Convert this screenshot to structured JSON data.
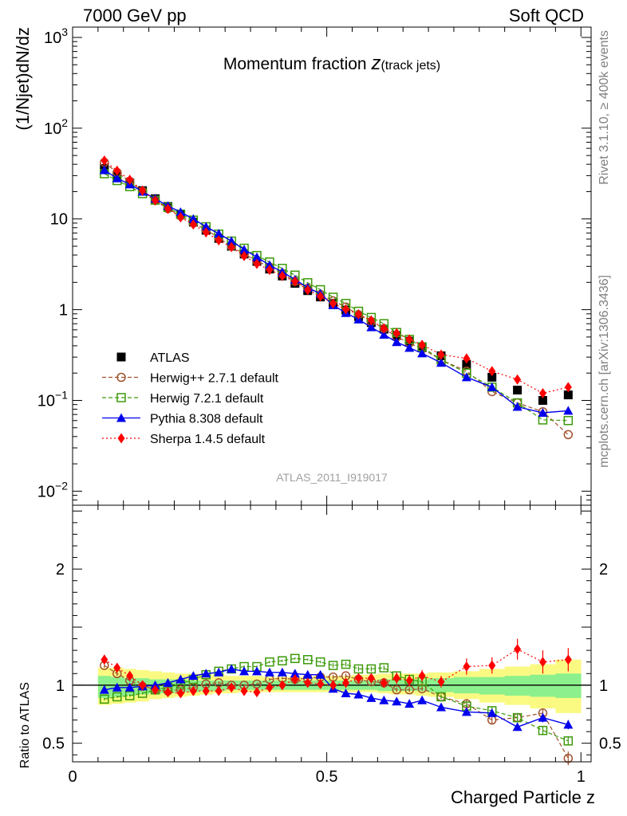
{
  "header": {
    "left": "7000 GeV pp",
    "right": "Soft QCD"
  },
  "side_labels": {
    "top": "Rivet 3.1.10, ≥ 400k events",
    "bottom": "mcplots.cern.ch [arXiv:1306.3436]"
  },
  "colors": {
    "atlas": "#000000",
    "herwigpp": "#a0522d",
    "herwig7": "#3c9a0a",
    "pythia": "#0000ee",
    "sherpa": "#ff0000",
    "band_inner": "#8cf08c",
    "band_outer": "#fafa82"
  },
  "chart_data": [
    {
      "type": "line",
      "title": "Momentum fraction",
      "title_math": "z",
      "title_sub": "(track jets)",
      "watermark": "ATLAS_2011_I919017",
      "ylabel": "(1/Njet)dN/dz",
      "yscale": "log",
      "xlim": [
        0,
        1.02
      ],
      "ylim": [
        0.007,
        1300
      ],
      "y_ticks": [
        {
          "value": 0.01,
          "base": "10",
          "exp": "−2"
        },
        {
          "value": 0.1,
          "base": "10",
          "exp": "−1"
        },
        {
          "value": 1,
          "label": "1"
        },
        {
          "value": 10,
          "label": "10"
        },
        {
          "value": 100,
          "base": "10",
          "exp": "2"
        },
        {
          "value": 1000,
          "base": "10",
          "exp": "3"
        }
      ],
      "legend_position": "left-middle",
      "x": [
        0.0625,
        0.0875,
        0.1125,
        0.1375,
        0.1625,
        0.1875,
        0.2125,
        0.2375,
        0.2625,
        0.2875,
        0.3125,
        0.3375,
        0.3625,
        0.3875,
        0.4125,
        0.4375,
        0.4625,
        0.4875,
        0.5125,
        0.5375,
        0.5625,
        0.5875,
        0.6125,
        0.6375,
        0.6625,
        0.6875,
        0.725,
        0.775,
        0.825,
        0.875,
        0.925,
        0.975
      ],
      "series": [
        {
          "key": "atlas",
          "name": "ATLAS",
          "marker": "square",
          "line": "none",
          "values": [
            36,
            29.5,
            25,
            20.5,
            16.7,
            13.7,
            11.2,
            9.2,
            7.5,
            6.1,
            5.0,
            4.1,
            3.4,
            2.8,
            2.35,
            1.95,
            1.62,
            1.38,
            1.17,
            0.99,
            0.84,
            0.72,
            0.61,
            0.52,
            0.45,
            0.38,
            0.31,
            0.25,
            0.18,
            0.13,
            0.1,
            0.115
          ]
        },
        {
          "key": "herwigpp",
          "name": "Herwig++ 2.7.1 default",
          "marker": "circle-open",
          "line": "dashed",
          "values": [
            42,
            32.5,
            26,
            20.2,
            16.0,
            13.0,
            10.8,
            9.0,
            7.6,
            6.2,
            5.0,
            4.1,
            3.45,
            2.95,
            2.5,
            2.05,
            1.72,
            1.47,
            1.25,
            1.07,
            0.88,
            0.74,
            0.62,
            0.5,
            0.43,
            0.37,
            0.28,
            0.21,
            0.125,
            0.094,
            0.075,
            0.042
          ]
        },
        {
          "key": "herwig7",
          "name": "Herwig 7.2.1 default",
          "marker": "square-open",
          "line": "dashed",
          "values": [
            31.5,
            26.5,
            22.7,
            19.0,
            16.1,
            13.4,
            11.3,
            9.7,
            8.2,
            6.8,
            5.7,
            4.75,
            3.95,
            3.35,
            2.85,
            2.4,
            1.98,
            1.66,
            1.37,
            1.17,
            0.96,
            0.82,
            0.7,
            0.56,
            0.47,
            0.39,
            0.28,
            0.2,
            0.14,
            0.094,
            0.061,
            0.06
          ]
        },
        {
          "key": "pythia",
          "name": "Pythia 8.308 default",
          "marker": "triangle",
          "line": "solid",
          "values": [
            34.5,
            28,
            24,
            20,
            16.7,
            13.9,
            11.9,
            10.0,
            8.2,
            6.9,
            5.7,
            4.6,
            3.8,
            3.1,
            2.6,
            2.15,
            1.75,
            1.5,
            1.12,
            0.92,
            0.78,
            0.64,
            0.53,
            0.44,
            0.38,
            0.33,
            0.26,
            0.18,
            0.14,
            0.085,
            0.073,
            0.077
          ]
        },
        {
          "key": "sherpa",
          "name": "Sherpa 1.4.5 default",
          "marker": "diamond",
          "line": "dotted",
          "values": [
            44,
            34,
            27,
            20.5,
            16.0,
            12.9,
            10.4,
            8.7,
            7.1,
            5.8,
            4.9,
            3.9,
            3.2,
            2.75,
            2.35,
            2.05,
            1.65,
            1.4,
            1.17,
            1.01,
            0.89,
            0.76,
            0.62,
            0.55,
            0.47,
            0.41,
            0.32,
            0.29,
            0.21,
            0.17,
            0.12,
            0.14
          ]
        }
      ]
    },
    {
      "type": "line",
      "ylabel": "Ratio to ATLAS",
      "xlabel": "Charged Particle z",
      "xlim": [
        0,
        1.02
      ],
      "ylim": [
        0.34,
        2.55
      ],
      "y_ticks": [
        0.5,
        1,
        2
      ],
      "y_tick_labels": [
        "0.5",
        "1",
        "2"
      ],
      "x_ticks": [
        0,
        0.5,
        1
      ],
      "x_tick_labels": [
        "0",
        "0.5",
        "1"
      ],
      "bands": {
        "x_edges": [
          0.05,
          0.075,
          0.1,
          0.125,
          0.15,
          0.175,
          0.2,
          0.225,
          0.25,
          0.275,
          0.3,
          0.325,
          0.35,
          0.375,
          0.4,
          0.425,
          0.45,
          0.475,
          0.5,
          0.525,
          0.55,
          0.575,
          0.6,
          0.625,
          0.65,
          0.675,
          0.7,
          0.75,
          0.8,
          0.85,
          0.9,
          0.95,
          1.0
        ],
        "inner_lo": [
          0.89,
          0.9,
          0.91,
          0.92,
          0.93,
          0.93,
          0.94,
          0.94,
          0.95,
          0.95,
          0.96,
          0.96,
          0.96,
          0.96,
          0.96,
          0.96,
          0.96,
          0.96,
          0.96,
          0.96,
          0.96,
          0.96,
          0.95,
          0.95,
          0.95,
          0.95,
          0.94,
          0.93,
          0.92,
          0.91,
          0.9,
          0.89
        ],
        "inner_hi": [
          1.08,
          1.07,
          1.06,
          1.06,
          1.05,
          1.05,
          1.05,
          1.04,
          1.04,
          1.04,
          1.04,
          1.04,
          1.04,
          1.04,
          1.04,
          1.04,
          1.04,
          1.04,
          1.04,
          1.04,
          1.04,
          1.04,
          1.05,
          1.05,
          1.05,
          1.05,
          1.06,
          1.07,
          1.07,
          1.08,
          1.09,
          1.1
        ],
        "outer_lo": [
          0.83,
          0.84,
          0.85,
          0.86,
          0.88,
          0.89,
          0.9,
          0.91,
          0.92,
          0.93,
          0.93,
          0.94,
          0.94,
          0.94,
          0.94,
          0.94,
          0.94,
          0.94,
          0.94,
          0.94,
          0.94,
          0.94,
          0.93,
          0.92,
          0.92,
          0.91,
          0.9,
          0.88,
          0.85,
          0.83,
          0.8,
          0.76
        ],
        "outer_hi": [
          1.15,
          1.15,
          1.14,
          1.13,
          1.12,
          1.11,
          1.1,
          1.1,
          1.09,
          1.09,
          1.08,
          1.08,
          1.08,
          1.07,
          1.07,
          1.07,
          1.07,
          1.08,
          1.08,
          1.08,
          1.09,
          1.09,
          1.1,
          1.1,
          1.1,
          1.1,
          1.11,
          1.12,
          1.14,
          1.16,
          1.18,
          1.22
        ]
      },
      "series": [
        {
          "key": "herwigpp",
          "name": "Herwig++ 2.7.1 default",
          "values": [
            1.17,
            1.1,
            1.04,
            0.99,
            0.96,
            0.95,
            0.96,
            0.98,
            1.01,
            1.02,
            1.0,
            1.0,
            1.01,
            1.05,
            1.06,
            1.05,
            1.06,
            1.07,
            1.07,
            1.08,
            1.05,
            1.03,
            1.02,
            0.96,
            0.96,
            0.97,
            0.9,
            0.84,
            0.7,
            0.72,
            0.76,
            0.37
          ],
          "err": [
            0.02,
            0.02,
            0.01,
            0.01,
            0.01,
            0.01,
            0.01,
            0.01,
            0.01,
            0.01,
            0.01,
            0.01,
            0.01,
            0.01,
            0.01,
            0.01,
            0.01,
            0.02,
            0.02,
            0.02,
            0.02,
            0.02,
            0.02,
            0.02,
            0.02,
            0.02,
            0.02,
            0.03,
            0.03,
            0.03,
            0.04,
            0.06
          ]
        },
        {
          "key": "herwig7",
          "name": "Herwig 7.2.1 default",
          "values": [
            0.88,
            0.9,
            0.91,
            0.93,
            0.96,
            0.98,
            1.01,
            1.05,
            1.09,
            1.12,
            1.14,
            1.16,
            1.16,
            1.2,
            1.21,
            1.23,
            1.22,
            1.2,
            1.17,
            1.18,
            1.14,
            1.14,
            1.15,
            1.08,
            1.05,
            1.03,
            0.9,
            0.82,
            0.78,
            0.72,
            0.61,
            0.52
          ],
          "err": [
            0.01,
            0.01,
            0.01,
            0.01,
            0.01,
            0.01,
            0.01,
            0.01,
            0.01,
            0.01,
            0.01,
            0.01,
            0.01,
            0.01,
            0.01,
            0.01,
            0.01,
            0.01,
            0.02,
            0.02,
            0.02,
            0.02,
            0.02,
            0.02,
            0.02,
            0.02,
            0.02,
            0.03,
            0.03,
            0.03,
            0.04,
            0.04
          ]
        },
        {
          "key": "pythia",
          "name": "Pythia 8.308 default",
          "values": [
            0.96,
            0.98,
            0.98,
            0.99,
            1.0,
            1.02,
            1.05,
            1.08,
            1.1,
            1.11,
            1.14,
            1.12,
            1.12,
            1.11,
            1.11,
            1.1,
            1.09,
            1.09,
            0.97,
            0.93,
            0.92,
            0.89,
            0.87,
            0.86,
            0.84,
            0.87,
            0.81,
            0.77,
            0.76,
            0.64,
            0.72,
            0.66
          ],
          "err": [
            0.02,
            0.02,
            0.01,
            0.01,
            0.01,
            0.01,
            0.01,
            0.01,
            0.01,
            0.01,
            0.01,
            0.01,
            0.01,
            0.01,
            0.01,
            0.01,
            0.01,
            0.02,
            0.02,
            0.02,
            0.02,
            0.02,
            0.02,
            0.02,
            0.02,
            0.02,
            0.02,
            0.03,
            0.03,
            0.03,
            0.04,
            0.04
          ]
        },
        {
          "key": "sherpa",
          "name": "Sherpa 1.4.5 default",
          "values": [
            1.22,
            1.15,
            1.08,
            1.0,
            0.96,
            0.94,
            0.93,
            0.95,
            0.95,
            0.95,
            0.98,
            0.95,
            0.94,
            0.98,
            1.0,
            1.05,
            1.02,
            1.01,
            1.0,
            1.02,
            1.06,
            1.06,
            1.02,
            1.06,
            1.04,
            1.08,
            1.03,
            1.16,
            1.17,
            1.31,
            1.2,
            1.22
          ],
          "err": [
            0.03,
            0.03,
            0.02,
            0.02,
            0.02,
            0.02,
            0.02,
            0.02,
            0.02,
            0.02,
            0.02,
            0.02,
            0.02,
            0.02,
            0.02,
            0.03,
            0.03,
            0.03,
            0.03,
            0.03,
            0.04,
            0.04,
            0.04,
            0.05,
            0.05,
            0.05,
            0.05,
            0.07,
            0.07,
            0.09,
            0.1,
            0.1
          ]
        }
      ]
    }
  ]
}
